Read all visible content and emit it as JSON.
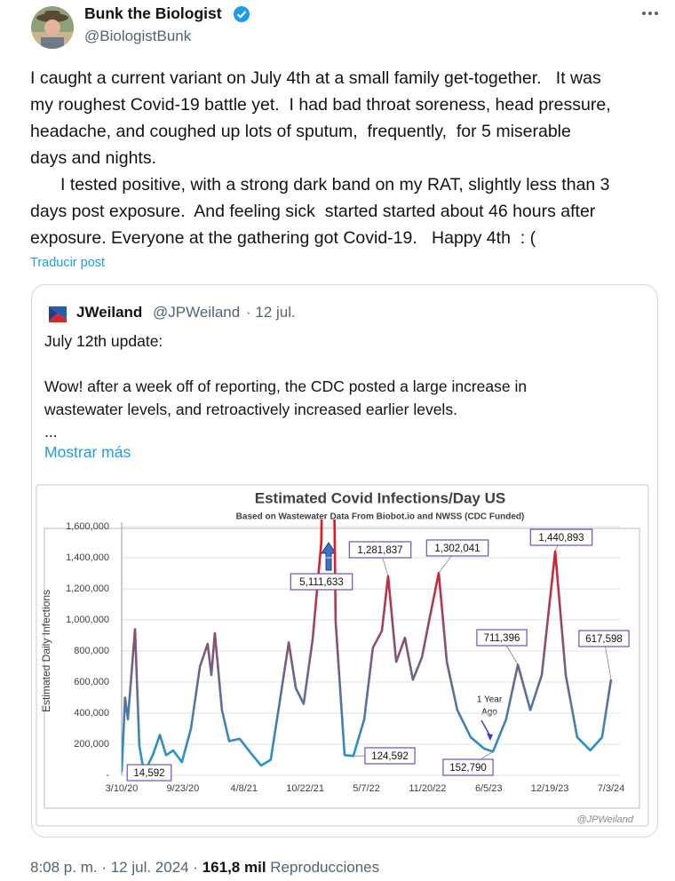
{
  "author": {
    "name": "Bunk the Biologist",
    "handle": "@BiologistBunk"
  },
  "text": {
    "lines": [
      "I caught a current variant on July 4th at a small family get-together.   It was",
      "my roughest Covid-19 battle yet.  I had bad throat soreness, head pressure,",
      "headache, and coughed up lots of sputum,  frequently,  for 5 miserable",
      "days and nights.",
      "I tested positive, with a strong dark band on my RAT, slightly less than 3",
      "days post exposure.  And feeling sick  started started about 46 hours after",
      "exposure. Everyone at the gathering got Covid-19.   Happy 4th  : ("
    ]
  },
  "translate": "Traducir post",
  "quote": {
    "name": "JWeiland",
    "handle": "@JPWeiland",
    "date": "· 12 jul.",
    "lines": [
      "July 12th update:",
      "Wow! after a week off of reporting, the CDC posted a large increase in",
      "wastewater levels, and retroactively increased earlier levels.",
      "..."
    ],
    "more": "Mostrar más"
  },
  "chart_data": {
    "type": "line",
    "title": "Estimated Covid Infections/Day US",
    "subtitle": "Based on Wastewater Data From Biobot.io and NWSS (CDC Funded)",
    "y_label": "Estimated Daily Infections",
    "watermark": "@JPWeiland",
    "annotations": [
      "1 Year",
      "Ago"
    ],
    "x": [
      "3/10/20",
      "3/21/20",
      "3/30/20",
      "4/22/20",
      "5/6/20",
      "5/21/20",
      "6/18/20",
      "7/11/20",
      "7/31/20",
      "8/23/20",
      "9/20/20",
      "10/19/20",
      "11/17/20",
      "12/12/20",
      "12/24/20",
      "1/4/21",
      "1/27/21",
      "2/19/21",
      "3/25/21",
      "4/29/21",
      "6/2/21",
      "7/3/21",
      "8/1/21",
      "8/30/21",
      "9/22/21",
      "10/17/21",
      "11/15/21",
      "12/13/21",
      "1/5/22",
      "1/28/22",
      "2/26/22",
      "3/26/22",
      "4/30/22",
      "5/28/22",
      "6/26/22",
      "7/16/22",
      "8/11/22",
      "9/8/22",
      "10/4/22",
      "11/2/22",
      "11/30/22",
      "12/26/22",
      "1/21/23",
      "2/24/23",
      "4/8/23",
      "5/21/23",
      "6/19/23",
      "7/31/23",
      "9/7/23",
      "10/17/23",
      "11/23/23",
      "1/5/24",
      "2/8/24",
      "3/16/24",
      "4/27/24",
      "6/4/24",
      "7/3/24"
    ],
    "values": [
      20000,
      500000,
      360000,
      940000,
      190000,
      14592,
      130000,
      260000,
      130000,
      160000,
      85000,
      300000,
      700000,
      845000,
      645000,
      915000,
      420000,
      220000,
      235000,
      145000,
      63000,
      100000,
      475000,
      855000,
      560000,
      460000,
      875000,
      1500000,
      5111633,
      990000,
      130000,
      124592,
      360000,
      820000,
      930000,
      1281837,
      730000,
      885000,
      615000,
      760000,
      1045000,
      1302041,
      730000,
      420000,
      245000,
      172000,
      152790,
      360000,
      711396,
      420000,
      645000,
      1440893,
      645000,
      245000,
      160000,
      245000,
      617598
    ],
    "value_labels": [
      null,
      null,
      null,
      null,
      null,
      "14,592",
      null,
      null,
      null,
      null,
      null,
      null,
      null,
      null,
      null,
      null,
      null,
      null,
      null,
      null,
      null,
      null,
      null,
      null,
      null,
      null,
      null,
      null,
      "5,111,633",
      null,
      null,
      "124,592",
      null,
      null,
      null,
      "1,281,837",
      null,
      null,
      null,
      null,
      null,
      "1,302,041",
      null,
      null,
      null,
      null,
      "152,790",
      null,
      "711,396",
      null,
      null,
      "1,440,893",
      null,
      null,
      null,
      null,
      "617,598"
    ],
    "xlim": [
      "3/10/20",
      "7/3/24"
    ],
    "xticks": [
      "3/10/20",
      "9/23/20",
      "4/8/21",
      "10/22/21",
      "5/7/22",
      "11/20/22",
      "6/5/23",
      "12/19/23",
      "7/3/24"
    ],
    "ylim": [
      0,
      1600000
    ],
    "yticks": [
      {
        "value": 0,
        "label": "-"
      },
      {
        "value": 200000,
        "label": "200,000"
      },
      {
        "value": 400000,
        "label": "400,000"
      },
      {
        "value": 600000,
        "label": "600,000"
      },
      {
        "value": 800000,
        "label": "800,000"
      },
      {
        "value": 1000000,
        "label": "1,000,000"
      },
      {
        "value": 1200000,
        "label": "1,200,000"
      },
      {
        "value": 1400000,
        "label": "1,400,000"
      },
      {
        "value": 1600000,
        "label": "1,600,000"
      }
    ],
    "grid": true,
    "gradient": [
      "#e8141c",
      "#1a9ad6"
    ],
    "label_border": "#6a4fc8"
  },
  "footer": {
    "time": "8:08 p. m. · 12 jul. 2024 · ",
    "views": "161,8 mil",
    "views_label": " Reproducciones"
  }
}
